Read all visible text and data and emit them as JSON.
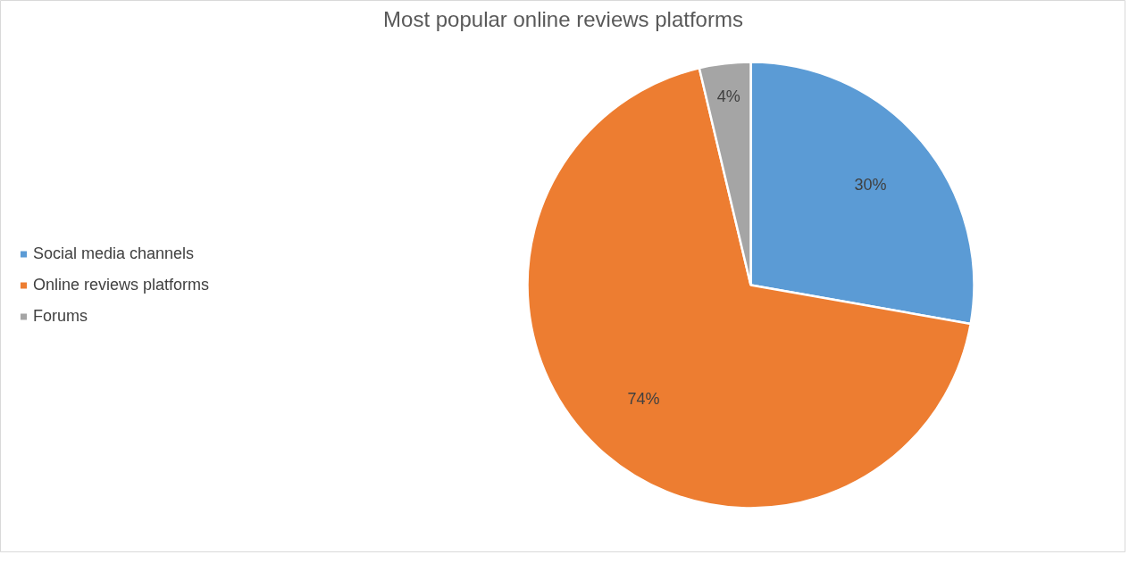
{
  "chart_data": {
    "type": "pie",
    "title": "Most popular online reviews platforms",
    "categories": [
      "Social media channels",
      "Online reviews platforms",
      "Forums"
    ],
    "values": [
      30,
      74,
      4
    ],
    "colors": [
      "#5b9bd5",
      "#ed7d31",
      "#a5a5a5"
    ],
    "value_labels": [
      "30%",
      "74%",
      "4%"
    ],
    "legend": "left"
  }
}
